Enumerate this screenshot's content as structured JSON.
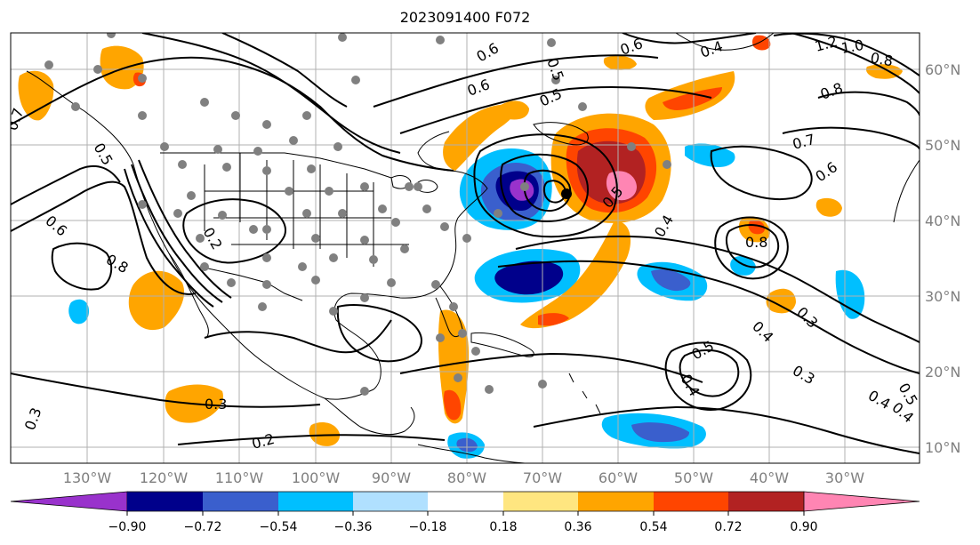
{
  "title": "2023091400 F072",
  "colors": {
    "background": "#ffffff",
    "grid": "#b0b0b0",
    "tick_label": "#7f7f7f",
    "contour": "#000000",
    "station_marker": "#808080"
  },
  "longitude_ticks": [
    "130°W",
    "120°W",
    "110°W",
    "100°W",
    "90°W",
    "80°W",
    "70°W",
    "60°W",
    "50°W",
    "40°W",
    "30°W"
  ],
  "latitude_ticks": [
    "60°N",
    "50°N",
    "40°N",
    "30°N",
    "20°N",
    "10°N"
  ],
  "colorbar": {
    "extend": "both",
    "tick_labels": [
      "−0.90",
      "−0.72",
      "−0.54",
      "−0.36",
      "−0.18",
      "0.18",
      "0.36",
      "0.54",
      "0.72",
      "0.90"
    ],
    "bin_colors": [
      "#9932cc",
      "#00008b",
      "#3a5fcd",
      "#00bfff",
      "#b0e0ff",
      "#ffffff",
      "#ffe680",
      "#ffa500",
      "#ff4500",
      "#b22222",
      "#ff85b3"
    ]
  },
  "contour_labels": [
    "0.6",
    "0.4",
    "1.2",
    "1.0",
    "0.8",
    "0.6",
    "0.5",
    "0.6",
    "0.5",
    "0.8",
    "0.7",
    "0.6",
    "0.4",
    "0.5",
    "0.7",
    "0.5",
    "0.6",
    "0.8",
    "0.2",
    "0.4",
    "0.3",
    "0.4",
    "0.5",
    "0.4",
    "0.3",
    "0.3",
    "0.2",
    "0.3",
    "0.8",
    "0.4",
    "0.5"
  ]
}
